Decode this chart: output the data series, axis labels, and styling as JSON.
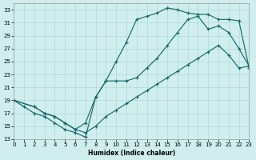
{
  "background_color": "#d0eeee",
  "grid_color": "#aed8d8",
  "line_color": "#1a6b6b",
  "xlabel": "Humidex (Indice chaleur)",
  "xlim": [
    0,
    23
  ],
  "ylim": [
    13,
    34
  ],
  "xticks": [
    0,
    1,
    2,
    3,
    4,
    5,
    6,
    7,
    8,
    9,
    10,
    11,
    12,
    13,
    14,
    15,
    16,
    17,
    18,
    19,
    20,
    21,
    22,
    23
  ],
  "yticks": [
    13,
    15,
    17,
    19,
    21,
    23,
    25,
    27,
    29,
    31,
    33
  ],
  "line1_x": [
    0,
    1,
    2,
    3,
    4,
    5,
    6,
    7,
    8,
    9,
    10,
    11,
    12,
    13,
    14,
    15,
    16,
    17,
    18,
    19,
    20,
    21,
    22,
    23
  ],
  "line1_y": [
    19,
    18,
    17,
    16.5,
    15.5,
    14.5,
    14,
    13.3,
    19.5,
    22,
    25,
    28,
    31.5,
    32,
    32.5,
    33.3,
    33,
    32.5,
    32.3,
    32.3,
    31.5,
    31.5,
    31.3,
    24
  ],
  "line2_x": [
    0,
    2,
    3,
    4,
    5,
    6,
    7,
    8,
    9,
    10,
    11,
    12,
    13,
    14,
    15,
    16,
    17,
    18,
    19,
    20,
    21,
    22,
    23
  ],
  "line2_y": [
    19,
    18,
    17,
    16.5,
    15.5,
    14.5,
    15.5,
    19.5,
    22,
    22,
    22,
    22.5,
    24,
    25.5,
    27.5,
    29.5,
    31.5,
    32,
    30,
    30.5,
    29.5,
    27,
    24.3
  ],
  "line3_x": [
    0,
    2,
    3,
    4,
    5,
    6,
    7,
    8,
    9,
    10,
    11,
    12,
    13,
    14,
    15,
    16,
    17,
    18,
    19,
    20,
    21,
    22,
    23
  ],
  "line3_y": [
    19,
    18,
    17,
    16.5,
    15.5,
    14.5,
    14,
    15,
    16.5,
    17.5,
    18.5,
    19.5,
    20.5,
    21.5,
    22.5,
    23.5,
    24.5,
    25.5,
    26.5,
    27.5,
    26,
    24,
    24.3
  ]
}
